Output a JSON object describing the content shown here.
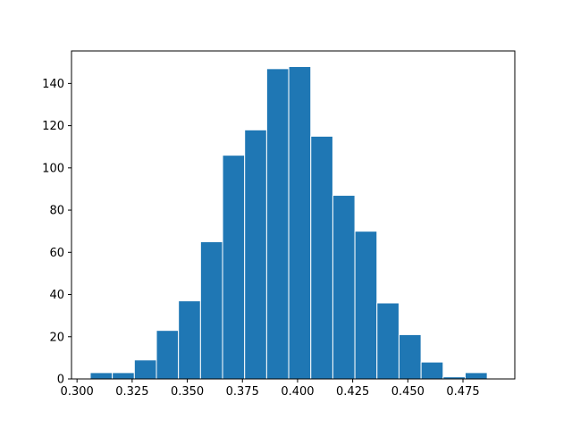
{
  "chart_data": {
    "type": "bar",
    "title": "",
    "xlabel": "",
    "ylabel": "",
    "grid": false,
    "legend": "none",
    "bar_color": "#1f77b4",
    "bar_edge_color": "#ffffff",
    "xlim": [
      0.2975,
      0.4985
    ],
    "ylim": [
      0,
      155.4
    ],
    "bins": [
      {
        "x0": 0.306,
        "x1": 0.316,
        "count": 3
      },
      {
        "x0": 0.316,
        "x1": 0.326,
        "count": 3
      },
      {
        "x0": 0.326,
        "x1": 0.336,
        "count": 9
      },
      {
        "x0": 0.336,
        "x1": 0.346,
        "count": 23
      },
      {
        "x0": 0.346,
        "x1": 0.356,
        "count": 37
      },
      {
        "x0": 0.356,
        "x1": 0.366,
        "count": 65
      },
      {
        "x0": 0.366,
        "x1": 0.376,
        "count": 106
      },
      {
        "x0": 0.376,
        "x1": 0.386,
        "count": 118
      },
      {
        "x0": 0.386,
        "x1": 0.396,
        "count": 147
      },
      {
        "x0": 0.396,
        "x1": 0.406,
        "count": 148
      },
      {
        "x0": 0.406,
        "x1": 0.416,
        "count": 115
      },
      {
        "x0": 0.416,
        "x1": 0.426,
        "count": 87
      },
      {
        "x0": 0.426,
        "x1": 0.436,
        "count": 70
      },
      {
        "x0": 0.436,
        "x1": 0.446,
        "count": 36
      },
      {
        "x0": 0.446,
        "x1": 0.456,
        "count": 21
      },
      {
        "x0": 0.456,
        "x1": 0.466,
        "count": 8
      },
      {
        "x0": 0.466,
        "x1": 0.476,
        "count": 1
      },
      {
        "x0": 0.476,
        "x1": 0.486,
        "count": 3
      }
    ],
    "x_ticks": [
      {
        "value": 0.3,
        "label": "0.300"
      },
      {
        "value": 0.325,
        "label": "0.325"
      },
      {
        "value": 0.35,
        "label": "0.350"
      },
      {
        "value": 0.375,
        "label": "0.375"
      },
      {
        "value": 0.4,
        "label": "0.400"
      },
      {
        "value": 0.425,
        "label": "0.425"
      },
      {
        "value": 0.45,
        "label": "0.450"
      },
      {
        "value": 0.475,
        "label": "0.475"
      }
    ],
    "y_ticks": [
      {
        "value": 0,
        "label": "0"
      },
      {
        "value": 20,
        "label": "20"
      },
      {
        "value": 40,
        "label": "40"
      },
      {
        "value": 60,
        "label": "60"
      },
      {
        "value": 80,
        "label": "80"
      },
      {
        "value": 100,
        "label": "100"
      },
      {
        "value": 120,
        "label": "120"
      },
      {
        "value": 140,
        "label": "140"
      }
    ]
  }
}
